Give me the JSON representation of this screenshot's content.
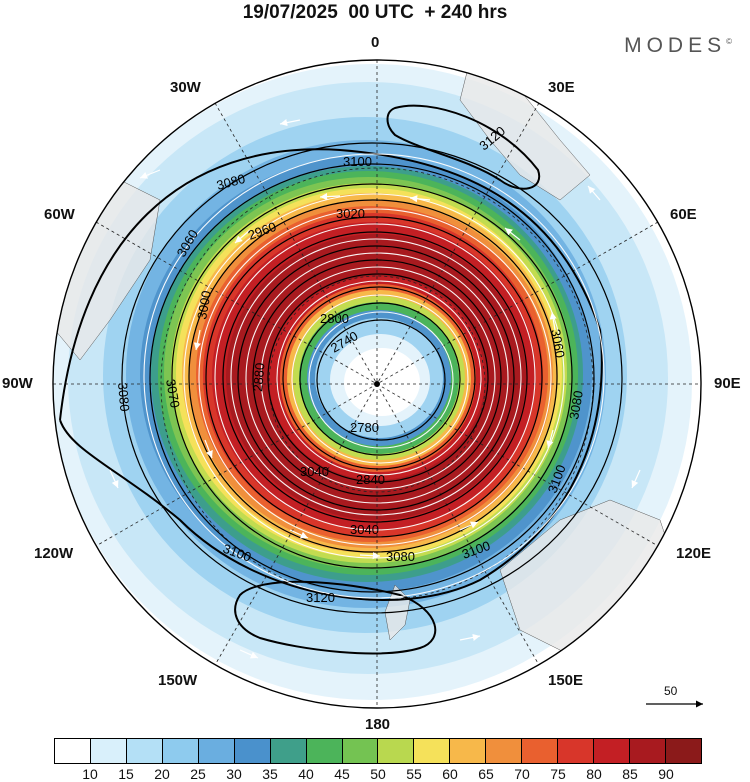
{
  "title": "19/07/2025  00 UTC  + 240 hrs",
  "brand": "MODES",
  "brand_mark": "©",
  "longitude_labels": {
    "lon_0": "0",
    "lon_30e": "30E",
    "lon_60e": "60E",
    "lon_90e": "90E",
    "lon_120e": "120E",
    "lon_150e": "150E",
    "lon_180": "180",
    "lon_150w": "150W",
    "lon_120w": "120W",
    "lon_90w": "90W",
    "lon_60w": "60W",
    "lon_30w": "30W"
  },
  "contour_labels": [
    "3100",
    "3120",
    "3080",
    "3060",
    "3020",
    "2960",
    "2800",
    "2740",
    "2780",
    "3000",
    "3040",
    "3080",
    "3100",
    "3120",
    "3070",
    "3060",
    "2880",
    "2840",
    "3040",
    "3080",
    "3100"
  ],
  "reference_vector": {
    "value": "50",
    "color": "#000000"
  },
  "colorbar": {
    "levels": [
      "10",
      "15",
      "20",
      "25",
      "30",
      "35",
      "40",
      "45",
      "50",
      "55",
      "60",
      "65",
      "70",
      "75",
      "80",
      "85",
      "90"
    ],
    "colors": [
      "#ffffff",
      "#d9f0fb",
      "#b4e0f6",
      "#8ecbee",
      "#6aaee0",
      "#4a91cc",
      "#3f9f8a",
      "#4cb45a",
      "#74c352",
      "#b9d84f",
      "#f5e15a",
      "#f7b84a",
      "#f08f3c",
      "#e9602f",
      "#d8362a",
      "#c31f24",
      "#a81a1f",
      "#8b1a1a"
    ]
  }
}
